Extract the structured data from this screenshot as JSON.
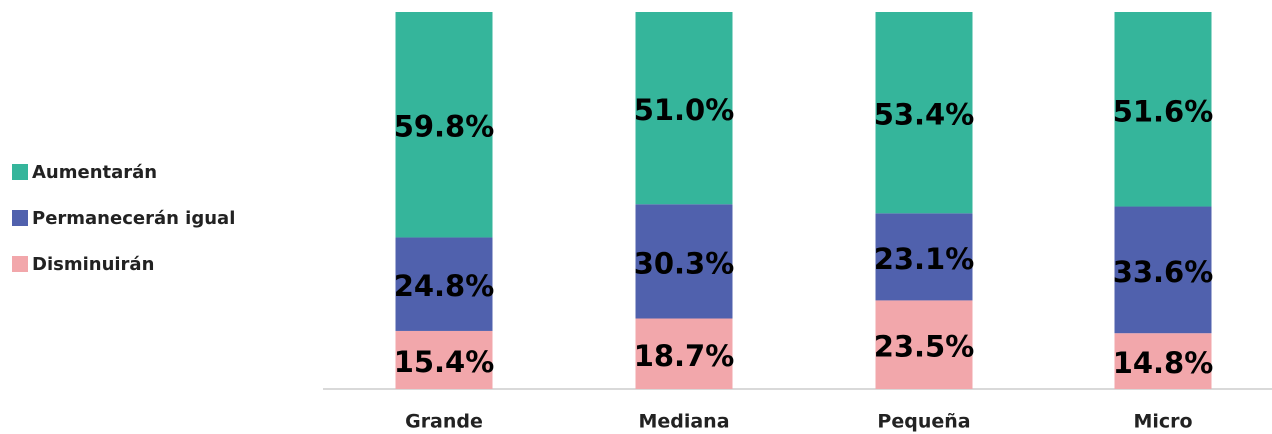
{
  "chart_data": {
    "type": "stacked_bar",
    "categories": [
      "Grande",
      "Mediana",
      "Pequeña",
      "Micro"
    ],
    "series": [
      {
        "name": "Disminuirán",
        "color": "#f2a7ab",
        "values": [
          15.4,
          18.7,
          23.5,
          14.8
        ],
        "value_labels": [
          "15.4%",
          "18.7%",
          "23.5%",
          "14.8%"
        ]
      },
      {
        "name": "Permanecerán igual",
        "color": "#5061ad",
        "values": [
          24.8,
          30.3,
          23.1,
          33.6
        ],
        "value_labels": [
          "24.8%",
          "30.3%",
          "23.1%",
          "33.6%"
        ]
      },
      {
        "name": "Aumentarán",
        "color": "#35b59b",
        "values": [
          59.8,
          51.0,
          53.4,
          51.6
        ],
        "value_labels": [
          "59.8%",
          "51.0%",
          "53.4%",
          "51.6%"
        ]
      }
    ],
    "ylim": [
      0,
      100
    ]
  }
}
